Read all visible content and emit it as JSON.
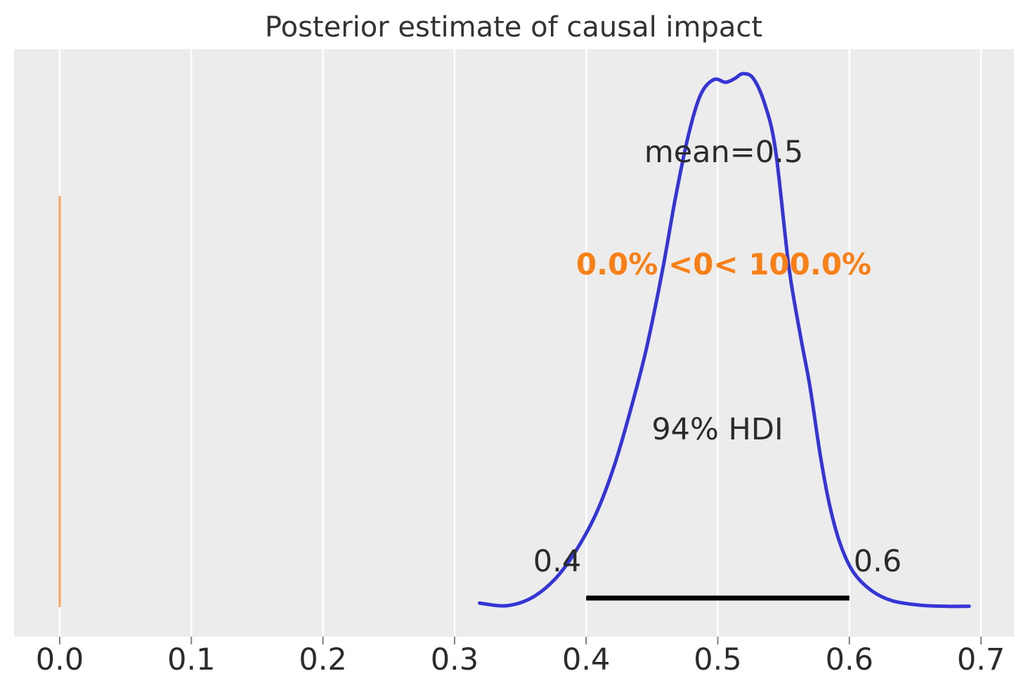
{
  "chart_data": {
    "type": "kde",
    "title": "Posterior estimate of causal impact",
    "xlabel": "",
    "ylabel": "",
    "xlim": [
      -0.035,
      0.725
    ],
    "grid": true,
    "x_tick_labels": [
      "0.0",
      "0.1",
      "0.2",
      "0.3",
      "0.4",
      "0.5",
      "0.6",
      "0.7"
    ],
    "x_tick_values": [
      0.0,
      0.1,
      0.2,
      0.3,
      0.4,
      0.5,
      0.6,
      0.7
    ],
    "stats": {
      "mean": 0.5,
      "mean_label": "mean=0.5",
      "hdi_mass": "94%",
      "hdi_label": "94% HDI",
      "hdi_lower": 0.4,
      "hdi_upper": 0.6,
      "hdi_lower_label": "0.4",
      "hdi_upper_label": "0.6",
      "ref_val": 0.0,
      "ref_val_label": "0.0% <0< 100.0%"
    },
    "density": {
      "name": "posterior KDE",
      "peak_x": 0.52,
      "points": [
        [
          0.319,
          0.009
        ],
        [
          0.339,
          0.004
        ],
        [
          0.358,
          0.018
        ],
        [
          0.376,
          0.053
        ],
        [
          0.392,
          0.106
        ],
        [
          0.408,
          0.179
        ],
        [
          0.422,
          0.271
        ],
        [
          0.435,
          0.382
        ],
        [
          0.446,
          0.488
        ],
        [
          0.458,
          0.632
        ],
        [
          0.468,
          0.77
        ],
        [
          0.478,
          0.888
        ],
        [
          0.487,
          0.961
        ],
        [
          0.497,
          0.989
        ],
        [
          0.506,
          0.984
        ],
        [
          0.513,
          0.991
        ],
        [
          0.519,
          1.0
        ],
        [
          0.527,
          0.991
        ],
        [
          0.536,
          0.941
        ],
        [
          0.544,
          0.855
        ],
        [
          0.554,
          0.639
        ],
        [
          0.563,
          0.507
        ],
        [
          0.57,
          0.415
        ],
        [
          0.578,
          0.284
        ],
        [
          0.585,
          0.192
        ],
        [
          0.593,
          0.12
        ],
        [
          0.603,
          0.067
        ],
        [
          0.617,
          0.032
        ],
        [
          0.633,
          0.013
        ],
        [
          0.654,
          0.005
        ],
        [
          0.674,
          0.003
        ],
        [
          0.691,
          0.003
        ]
      ]
    },
    "style": {
      "figure_bg": "#ffffff",
      "plot_bg": "#ececec",
      "grid_color": "#ffffff",
      "curve_color": "#3535d5",
      "ref_line_color": "#f8a55b",
      "ref_text_color": "#f97f17",
      "hdi_line_color": "#000000",
      "text_color": "#2b2b2b",
      "title_color": "#333333",
      "tick_mark_color": "#7f7f7f"
    }
  }
}
